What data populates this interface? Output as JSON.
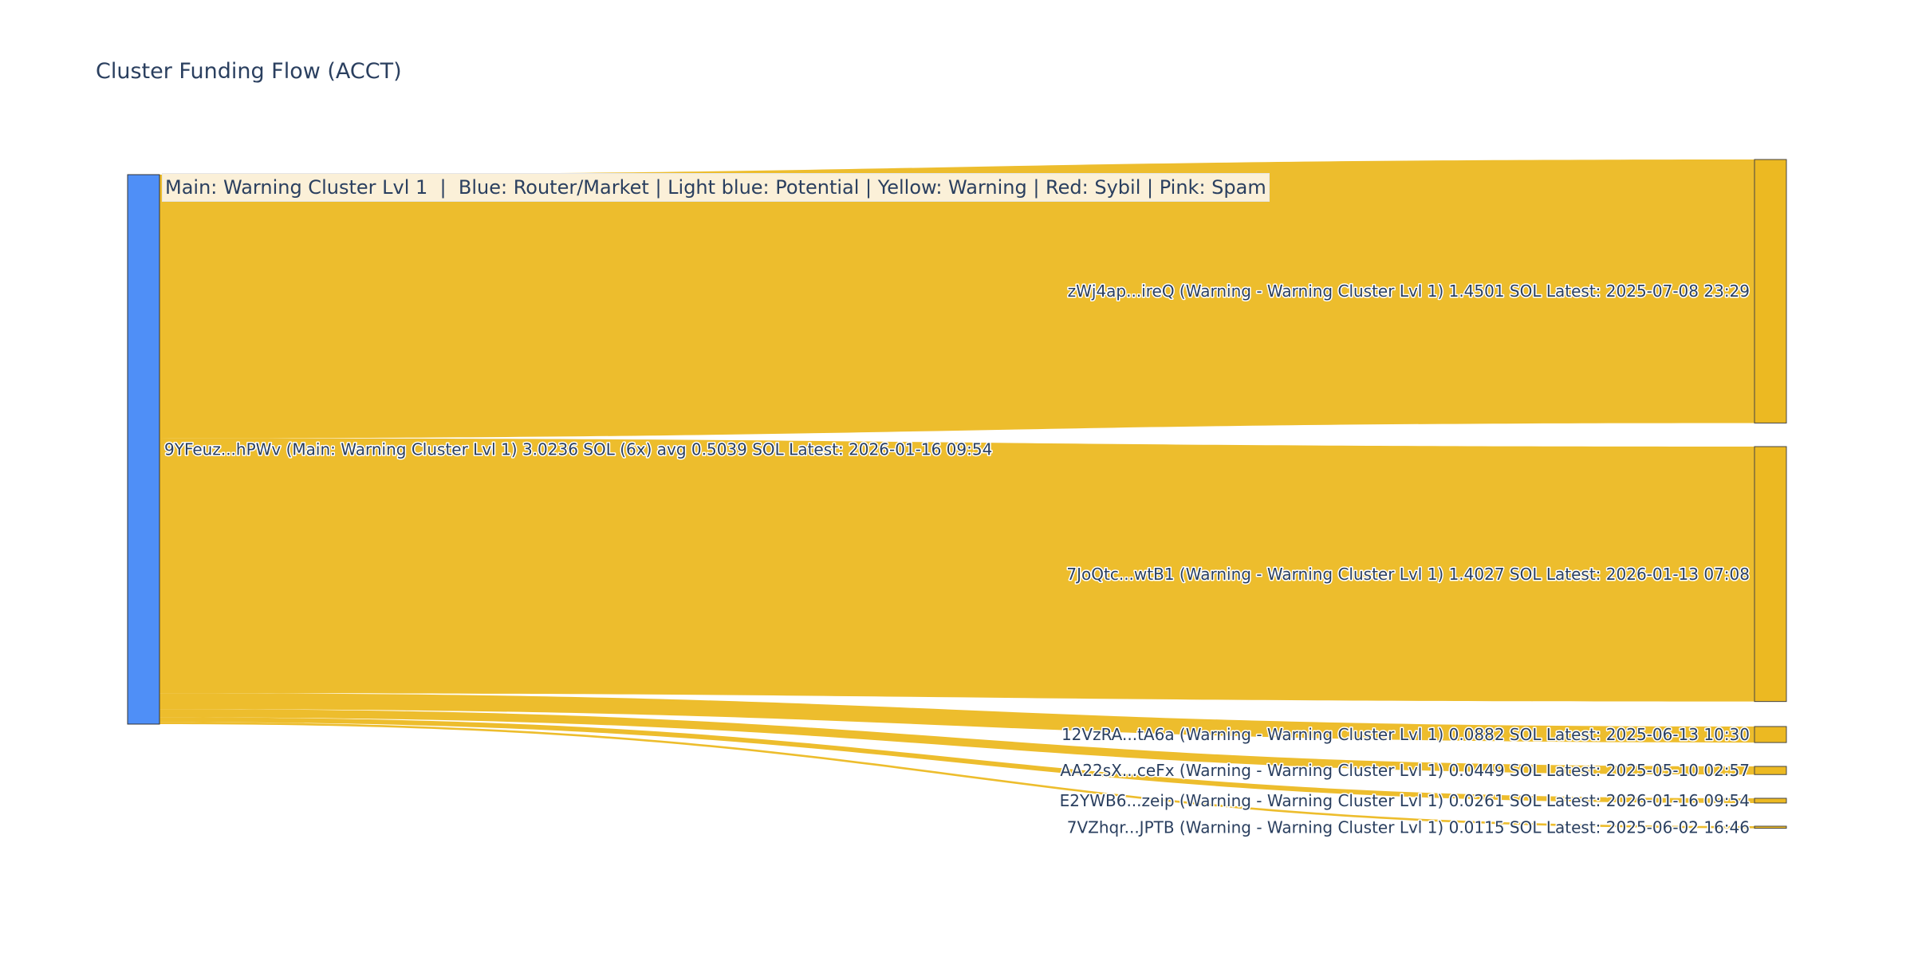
{
  "chart_data": {
    "type": "sankey",
    "title": "Cluster Funding Flow (ACCT)",
    "annotation": "Main: Warning Cluster Lvl 1  |  Blue: Router/Market | Light blue: Potential | Yellow: Warning | Red: Sybil | Pink: Spam",
    "colors": {
      "source_node": "#4f8ff7",
      "target_node": "#ecb922",
      "link": "#ecb922",
      "label": "#2a3f5f"
    },
    "source": {
      "label": "9YFeuz...hPWv (Main: Warning Cluster Lvl 1) 3.0236 SOL (6x) avg 0.5039 SOL Latest: 2026-01-16 09:54",
      "value": 3.0236
    },
    "targets": [
      {
        "label": "zWj4ap...ireQ (Warning - Warning Cluster Lvl 1) 1.4501 SOL Latest: 2025-07-08 23:29",
        "value": 1.4501
      },
      {
        "label": "7JoQtc...wtB1 (Warning - Warning Cluster Lvl 1) 1.4027 SOL Latest: 2026-01-13 07:08",
        "value": 1.4027
      },
      {
        "label": "12VzRA...tA6a (Warning - Warning Cluster Lvl 1) 0.0882 SOL Latest: 2025-06-13 10:30",
        "value": 0.0882
      },
      {
        "label": "AA22sX...ceFx (Warning - Warning Cluster Lvl 1) 0.0449 SOL Latest: 2025-05-10 02:57",
        "value": 0.0449
      },
      {
        "label": "E2YWB6...zeip (Warning - Warning Cluster Lvl 1) 0.0261 SOL Latest: 2026-01-16 09:54",
        "value": 0.0261
      },
      {
        "label": "7VZhqr...JPTB (Warning - Warning Cluster Lvl 1) 0.0115 SOL Latest: 2025-06-02 16:46",
        "value": 0.0115
      }
    ]
  }
}
